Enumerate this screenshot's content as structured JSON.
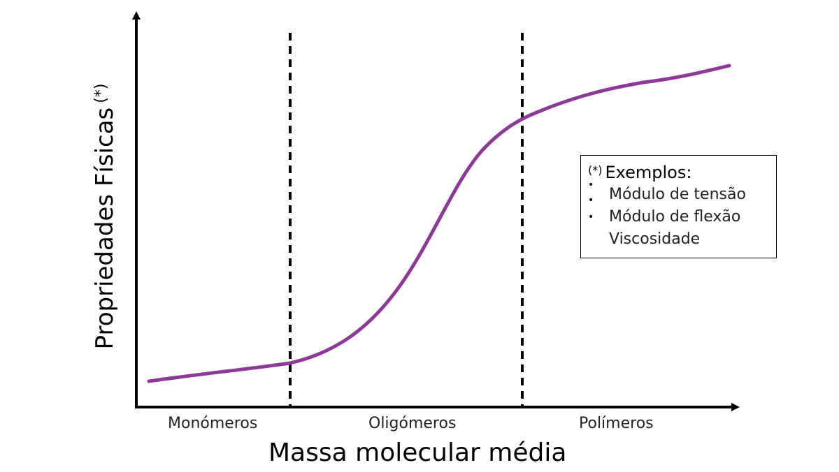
{
  "y_axis": {
    "label": "Propriedades Físicas",
    "mark": "(*)"
  },
  "x_axis": {
    "label": "Massa molecular média"
  },
  "regions": [
    "Monómeros",
    "Oligómeros",
    "Polímeros"
  ],
  "legend": {
    "mark": "(*)",
    "title": "Exemplos:",
    "items": [
      "Módulo de tensão",
      "Módulo de flexão",
      "Viscosidade"
    ]
  },
  "colors": {
    "curve": "#8b3a96",
    "axis": "#000000"
  }
}
